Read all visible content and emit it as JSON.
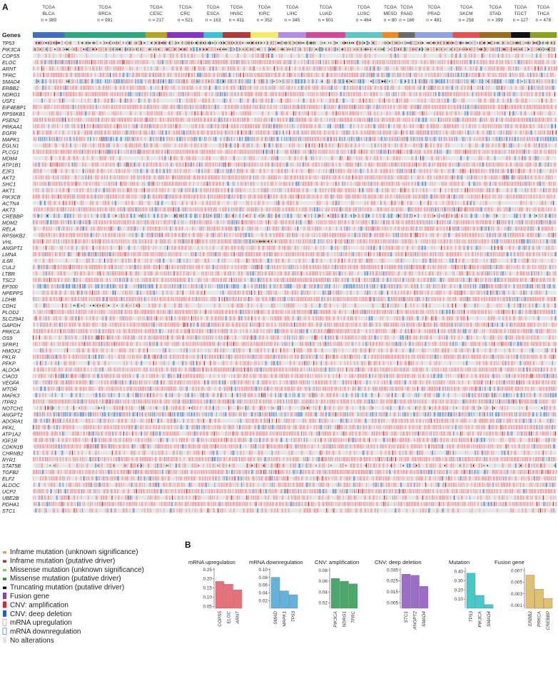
{
  "panel_a": {
    "letter": "A",
    "genes_header": "Genes",
    "cohorts": [
      {
        "line1": "TCGA",
        "line2": "BLCA",
        "n": "n = 389",
        "color": "#3f6fc0",
        "weight": 1.25
      },
      {
        "line1": "TCGA",
        "line2": "BRCA",
        "n": "n = 991",
        "color": "#2ea87c",
        "weight": 3.2
      },
      {
        "line1": "TCGA",
        "line2": "CESC",
        "n": "n = 217",
        "color": "#b8a320",
        "weight": 0.85
      },
      {
        "line1": "TCGA",
        "line2": "CRC",
        "n": "n = 521",
        "color": "#8a34c4",
        "weight": 1.45
      },
      {
        "line1": "TCGA",
        "line2": "ESCA",
        "n": "n = 163",
        "color": "#3fbfd8",
        "weight": 0.75
      },
      {
        "line1": "TCGA",
        "line2": "HNSC",
        "n": "n = 431",
        "color": "#b03a3a",
        "weight": 1.1
      },
      {
        "line1": "TCGA",
        "line2": "KIRC",
        "n": "n = 352",
        "color": "#f2ec6c",
        "weight": 1.1
      },
      {
        "line1": "TCGA",
        "line2": "LIHC",
        "n": "n = 345",
        "color": "#b58bea",
        "weight": 1.1
      },
      {
        "line1": "TCGA",
        "line2": "LUAD",
        "n": "n = 501",
        "color": "#d2479b",
        "weight": 1.55
      },
      {
        "line1": "TCGA",
        "line2": "LUSC",
        "n": "n = 464",
        "color": "#5cc7c7",
        "weight": 1.45
      },
      {
        "line1": "TCGA",
        "line2": "MESO",
        "n": "n = 80",
        "color": "#f08a1f",
        "weight": 0.65
      },
      {
        "line1": "TCGA",
        "line2": "PAAD",
        "n": "n = 166",
        "color": "#6a6a6a",
        "weight": 0.65
      },
      {
        "line1": "TCGA",
        "line2": "PRAD",
        "n": "n = 481",
        "color": "#8fa0e4",
        "weight": 1.5
      },
      {
        "line1": "TCGA",
        "line2": "SKCM",
        "n": "n = 258",
        "color": "#e8504f",
        "weight": 1.05
      },
      {
        "line1": "TCGA",
        "line2": "STAD",
        "n": "n = 399",
        "color": "#9a6d1e",
        "weight": 1.25
      },
      {
        "line1": "TCGA",
        "line2": "TGCT",
        "n": "n = 127",
        "color": "#111111",
        "weight": 0.75
      },
      {
        "line1": "TCGA",
        "line2": "THCA",
        "n": "n = 478",
        "color": "#8aa022",
        "weight": 1.05
      }
    ],
    "genes": [
      "TP53",
      "PIK3CA",
      "COPS5",
      "ELOC",
      "ARNT",
      "TFRC",
      "SMAD4",
      "ERBB2",
      "NDRG1",
      "USF1",
      "EIF4EBP1",
      "RPS6KB1",
      "PSEN2",
      "PRKAA1",
      "EGFR",
      "MAPK1",
      "EGLN1",
      "PLCG1",
      "MDM4",
      "ATP1B1",
      "E2F1",
      "AKT2",
      "SHC1",
      "AKT1",
      "PIK3CB",
      "ACTN4",
      "AKT3",
      "CREBBP",
      "MDM2",
      "RELA",
      "RPS6KB2",
      "VHL",
      "ANGPT1",
      "LMNA",
      "IL6R",
      "CUL2",
      "LTBR",
      "TSC2",
      "EP300",
      "NPEPPS",
      "LDHB",
      "CDH1",
      "PLOD2",
      "SLC29A1",
      "GAPDH",
      "PRKCA",
      "OS9",
      "SFRP1",
      "HMOX2",
      "PKLR",
      "PFKP",
      "ALDOA",
      "CIAO3",
      "VEGFA",
      "MTOR",
      "MAPK3",
      "ITPR2",
      "NOTCH1",
      "ANGPT2",
      "ADORA1",
      "PFKL",
      "ATP1A2",
      "IGF1R",
      "CDKN1B",
      "CHRNB2",
      "RYR1",
      "STAT5B",
      "TGFB2",
      "ELF2",
      "ALDOC",
      "UCP2",
      "UBE2B",
      "PDHA1",
      "STC1"
    ]
  },
  "panel_b": {
    "letter": "B",
    "legend": [
      {
        "label": "Inframe mutation (unknown significance)",
        "color": "#d9a066",
        "kind": "short"
      },
      {
        "label": "Inframe mutation (putative driver)",
        "color": "#a8343a",
        "kind": "short"
      },
      {
        "label": "Missense mutation (unknown significance)",
        "color": "#7bcf5a",
        "kind": "short"
      },
      {
        "label": "Missense mutation (putative driver)",
        "color": "#1e8a3c",
        "kind": "short"
      },
      {
        "label": "Truncating mutation (putative driver)",
        "color": "#111111",
        "kind": "short"
      },
      {
        "label": "Fusion gene",
        "color": "#8a3ab9",
        "kind": "box"
      },
      {
        "label": "CNV: amplification",
        "color": "#e0202a",
        "kind": "box"
      },
      {
        "label": "CNV: deep deletion",
        "color": "#2060c8",
        "kind": "box"
      },
      {
        "label": "mRNA upregulation",
        "color": "#f2a3a8",
        "kind": "outline"
      },
      {
        "label": "mRNA downregulation",
        "color": "#6c9fe0",
        "kind": "outline"
      },
      {
        "label": "No alterations",
        "color": "#e4e4e4",
        "kind": "box"
      }
    ]
  },
  "chart_data": [
    {
      "type": "bar",
      "title": "mRNA upregulation",
      "categories": [
        "COPS5",
        "ELOC",
        "ARNT"
      ],
      "values": [
        0.185,
        0.17,
        0.14
      ],
      "ylim": [
        0.04,
        0.26
      ],
      "yticks": [
        "0.25",
        "0.20",
        "0.15",
        "0.10",
        "0.05"
      ],
      "ytick_values": [
        0.25,
        0.2,
        0.15,
        0.1,
        0.05
      ],
      "color": "#e8707a"
    },
    {
      "type": "bar",
      "title": "mRNA downregulation",
      "categories": [
        "SMAD",
        "MAPK1",
        "TP53"
      ],
      "values": [
        0.08,
        0.045,
        0.035
      ],
      "ylim": [
        0.0,
        0.105
      ],
      "yticks": [
        "0.10",
        "0.08",
        "0.06",
        "0.04",
        "0.02"
      ],
      "ytick_values": [
        0.1,
        0.08,
        0.06,
        0.04,
        0.02
      ],
      "color": "#62b2e0"
    },
    {
      "type": "bar",
      "title": "CNV: amplification",
      "categories": [
        "PIK3CA",
        "NDRG1",
        "TFRC"
      ],
      "values": [
        0.065,
        0.06,
        0.055
      ],
      "ylim": [
        0.01,
        0.085
      ],
      "yticks": [
        "0.08",
        "0.06",
        "0.04",
        "0.02"
      ],
      "ytick_values": [
        0.08,
        0.06,
        0.04,
        0.02
      ],
      "color": "#4aa86a"
    },
    {
      "type": "bar",
      "title": "CNV: deep deletion",
      "categories": [
        "STC1",
        "ANGPT2",
        "SMAD4"
      ],
      "values": [
        0.031,
        0.03,
        0.02
      ],
      "ylim": [
        0.0,
        0.037
      ],
      "yticks": [
        "0.035",
        "0.025",
        "0.015",
        "0.005"
      ],
      "ytick_values": [
        0.035,
        0.025,
        0.015,
        0.005
      ],
      "color": "#9b6cc8"
    },
    {
      "type": "bar",
      "title": "Mutation",
      "categories": [
        "TP53",
        "PIK3CA",
        "SMAD4"
      ],
      "values": [
        0.38,
        0.14,
        0.04
      ],
      "ylim": [
        0.0,
        0.44
      ],
      "yticks": [
        "0.40",
        "0.30",
        "0.20",
        "0.10"
      ],
      "ytick_values": [
        0.4,
        0.3,
        0.2,
        0.1
      ],
      "color": "#46c8c8"
    },
    {
      "type": "bar",
      "title": "Fusion gene",
      "categories": [
        "ERBB2",
        "PRKCA",
        "CREBBP"
      ],
      "values": [
        0.0062,
        0.0038,
        0.0022
      ],
      "ylim": [
        0.0005,
        0.0075
      ],
      "yticks": [
        "0.007",
        "0.005",
        "0.003",
        "0.001"
      ],
      "ytick_values": [
        0.007,
        0.005,
        0.003,
        0.001
      ],
      "color": "#e0c070"
    }
  ],
  "colors": {
    "mrna_up": "#f4a6aa",
    "mrna_down": "#7aa4e0",
    "amp": "#e2232b",
    "del": "#2360c8",
    "missense_putative": "#1e8a3c",
    "missense_unknown": "#7bcf5a",
    "truncating": "#111111",
    "fusion": "#8a3ab9",
    "no_alt": "#e6e6e6"
  }
}
